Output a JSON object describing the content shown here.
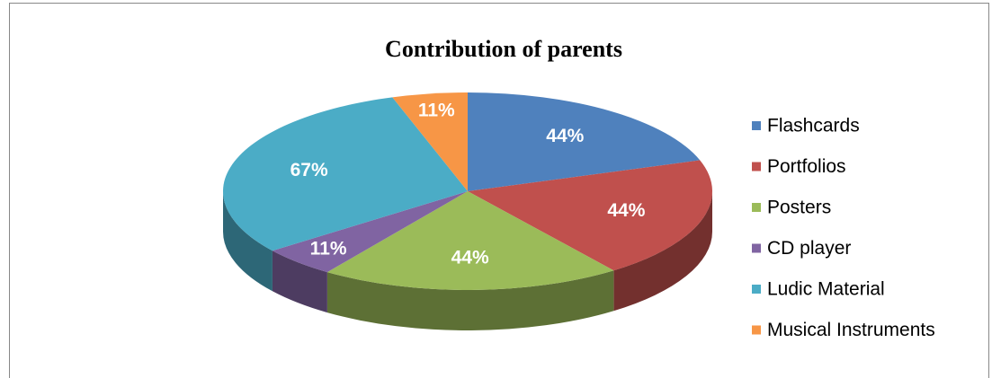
{
  "chart_data": {
    "type": "pie",
    "title": "Contribution of parents",
    "categories": [
      "Flashcards",
      "Portfolios",
      "Posters",
      "CD player",
      "Ludic Material",
      "Musical Instruments"
    ],
    "values": [
      44,
      44,
      44,
      11,
      67,
      11
    ],
    "value_labels": [
      "44%",
      "44%",
      "44%",
      "11%",
      "67%",
      "11%"
    ],
    "colors": [
      "#4f81bd",
      "#c0504d",
      "#9bbb59",
      "#8064a2",
      "#4bacc6",
      "#f79646"
    ],
    "legend": "right"
  }
}
